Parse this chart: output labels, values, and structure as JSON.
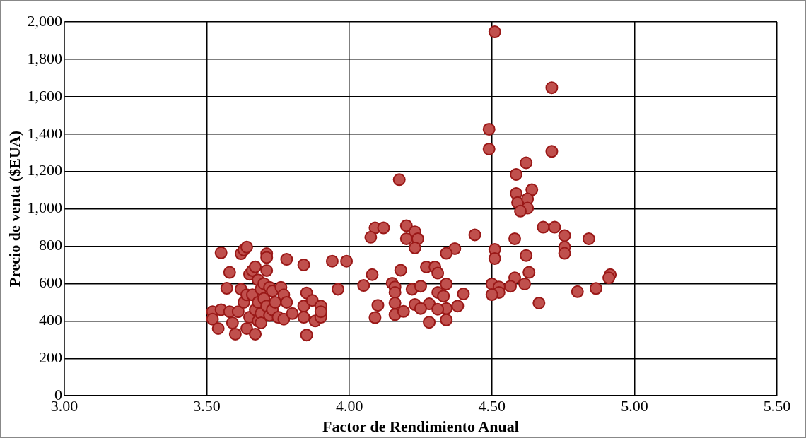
{
  "chart_data": {
    "type": "scatter",
    "xlabel": "Factor de Rendimiento Anual",
    "ylabel": "Precio de venta ($EUA)",
    "xlim": [
      3,
      5.5
    ],
    "xticks": [
      {
        "value": 3,
        "label": "3.00"
      },
      {
        "value": 3.5,
        "label": "3.50"
      },
      {
        "value": 4,
        "label": "4.00"
      },
      {
        "value": 4.5,
        "label": "4.50"
      },
      {
        "value": 5,
        "label": "5.00"
      },
      {
        "value": 5.5,
        "label": "5.50"
      }
    ],
    "ylim": [
      0,
      2000
    ],
    "yticks": [
      0,
      200,
      400,
      600,
      800,
      {
        "value": 1000,
        "label": "1,000"
      },
      {
        "value": 1200,
        "label": "1,200"
      },
      {
        "value": 1400,
        "label": "1,400"
      },
      {
        "value": 1600,
        "label": "1,600"
      },
      {
        "value": 1800,
        "label": "1,800"
      },
      {
        "value": 2000,
        "label": "2,000"
      }
    ],
    "grid": true,
    "marker": "circle",
    "series": [
      {
        "color": "#c0504d",
        "x": [
          3.52,
          3.52,
          3.54,
          3.55,
          3.55,
          3.57,
          3.58,
          3.58,
          3.59,
          3.6,
          3.61,
          3.62,
          3.62,
          3.63,
          3.63,
          3.64,
          3.64,
          3.64,
          3.65,
          3.65,
          3.66,
          3.66,
          3.67,
          3.67,
          3.67,
          3.68,
          3.68,
          3.68,
          3.69,
          3.69,
          3.69,
          3.7,
          3.7,
          3.71,
          3.71,
          3.71,
          3.71,
          3.72,
          3.72,
          3.73,
          3.73,
          3.74,
          3.75,
          3.76,
          3.77,
          3.77,
          3.78,
          3.78,
          3.8,
          3.84,
          3.84,
          3.84,
          3.85,
          3.85,
          3.87,
          3.88,
          3.9,
          3.9,
          3.9,
          3.94,
          3.96,
          3.99,
          4.09,
          4.12,
          4.075,
          4.2,
          4.23,
          4.2,
          4.24,
          4.23,
          4.44,
          4.37,
          4.34,
          4.08,
          4.18,
          4.27,
          4.3,
          4.31,
          4.05,
          4.15,
          4.16,
          4.16,
          4.22,
          4.25,
          4.34,
          4.31,
          4.33,
          4.4,
          4.1,
          4.16,
          4.23,
          4.28,
          4.34,
          4.38,
          4.09,
          4.16,
          4.19,
          4.25,
          4.31,
          4.34,
          4.28,
          4.175,
          4.51,
          4.71,
          4.49,
          4.49,
          4.71,
          4.62,
          4.585,
          4.64,
          4.585,
          4.59,
          4.625,
          4.625,
          4.6,
          4.68,
          4.72,
          4.755,
          4.84,
          4.58,
          4.755,
          4.755,
          4.51,
          4.51,
          4.62,
          4.63,
          4.58,
          4.915,
          4.91,
          4.5,
          4.525,
          4.565,
          4.615,
          4.525,
          4.5,
          4.8,
          4.865,
          4.665
        ],
        "values": [
          450,
          410,
          360,
          765,
          460,
          575,
          660,
          450,
          390,
          330,
          450,
          760,
          570,
          780,
          500,
          795,
          540,
          360,
          650,
          420,
          670,
          540,
          690,
          460,
          330,
          620,
          500,
          400,
          570,
          440,
          390,
          600,
          520,
          760,
          740,
          670,
          480,
          580,
          430,
          560,
          460,
          500,
          420,
          580,
          410,
          540,
          730,
          500,
          440,
          700,
          480,
          420,
          550,
          325,
          510,
          400,
          480,
          420,
          450,
          720,
          570,
          720,
          898,
          898,
          848,
          910,
          877,
          840,
          840,
          791,
          861,
          787,
          762,
          648,
          672,
          689,
          689,
          656,
          590,
          602,
          582,
          553,
          570,
          586,
          598,
          553,
          533,
          545,
          484,
          496,
          488,
          492,
          467,
          480,
          418,
          434,
          451,
          467,
          463,
          406,
          393,
          1156,
          1947,
          1648,
          1426,
          1320,
          1307,
          1246,
          1184,
          1102,
          1082,
          1033,
          1053,
          1004,
          988,
          902,
          902,
          857,
          840,
          840,
          795,
          762,
          783,
          734,
          750,
          660,
          631,
          648,
          631,
          598,
          582,
          586,
          598,
          553,
          541,
          557,
          574,
          496
        ]
      }
    ]
  }
}
